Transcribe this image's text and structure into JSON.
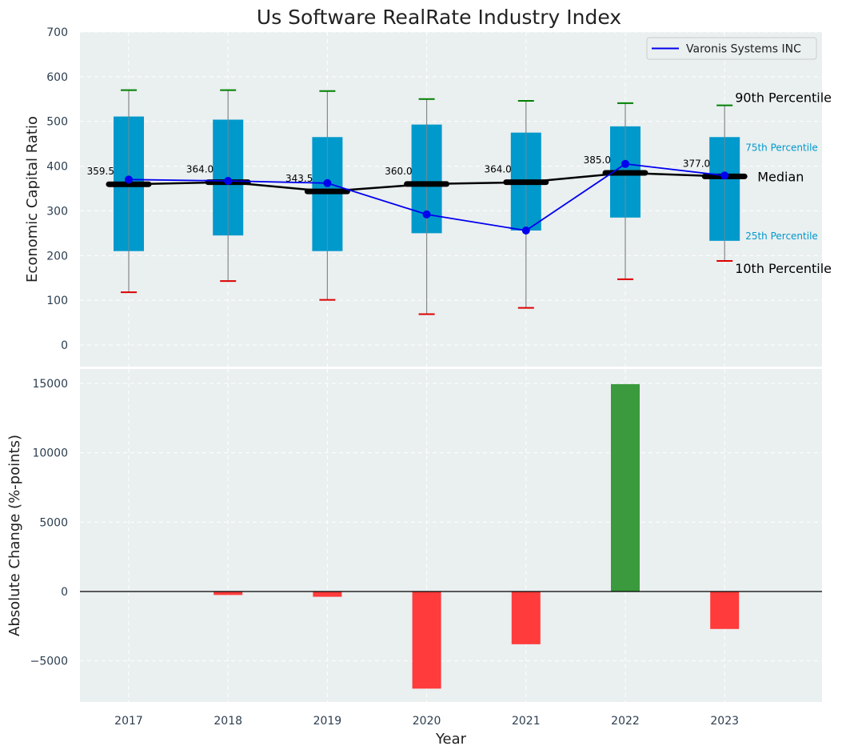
{
  "chart_data": [
    {
      "type": "box",
      "title": "Us Software RealRate Industry Index",
      "ylabel": "Economic Capital Ratio",
      "ylim": [
        -50,
        700
      ],
      "yticks": [
        0,
        100,
        200,
        300,
        400,
        500,
        600,
        700
      ],
      "categories": [
        "2017",
        "2018",
        "2019",
        "2020",
        "2021",
        "2022",
        "2023"
      ],
      "p10": [
        118,
        143,
        101,
        69,
        83,
        147,
        188
      ],
      "p25": [
        210,
        245,
        210,
        250,
        256,
        285,
        233
      ],
      "median": [
        359.5,
        364.0,
        343.5,
        360.0,
        364.0,
        385.0,
        377.0
      ],
      "median_labels": [
        "359.5",
        "364.0",
        "343.5",
        "360.0",
        "364.0",
        "385.0",
        "377.0"
      ],
      "p75": [
        511,
        504,
        465,
        493,
        475,
        489,
        465
      ],
      "p90": [
        570,
        570,
        568,
        550,
        546,
        541,
        536
      ],
      "company": {
        "name": "Varonis Systems INC",
        "values": [
          370,
          367,
          362,
          292,
          256,
          405,
          379
        ]
      },
      "annotations": {
        "p90": "90th Percentile",
        "p75": "75th Percentile",
        "median": "Median",
        "p25": "25th Percentile",
        "p10": "10th Percentile"
      },
      "legend": "top-right",
      "grid": true
    },
    {
      "type": "bar",
      "xlabel": "Year",
      "ylabel": "Absolute Change (%-points)",
      "categories": [
        "2017",
        "2018",
        "2019",
        "2020",
        "2021",
        "2022",
        "2023"
      ],
      "values": [
        0,
        -250,
        -380,
        -7000,
        -3800,
        14950,
        -2700
      ],
      "ylim": [
        -8000,
        16200
      ],
      "yticks": [
        -5000,
        0,
        5000,
        10000,
        15000
      ],
      "ytick_labels": [
        "−5000",
        "0",
        "5000",
        "10000",
        "15000"
      ],
      "colors": {
        "positive": "#3a9a3d",
        "negative": "#ff3b3b"
      },
      "grid": true
    }
  ],
  "colors": {
    "box": "#0099cc",
    "whisker": "#888888",
    "p90_cap": "#008000",
    "p10_cap": "#dd0000",
    "median_line": "#000000",
    "company_line": "#0000ee",
    "plot_bg": "#eaeff0"
  }
}
